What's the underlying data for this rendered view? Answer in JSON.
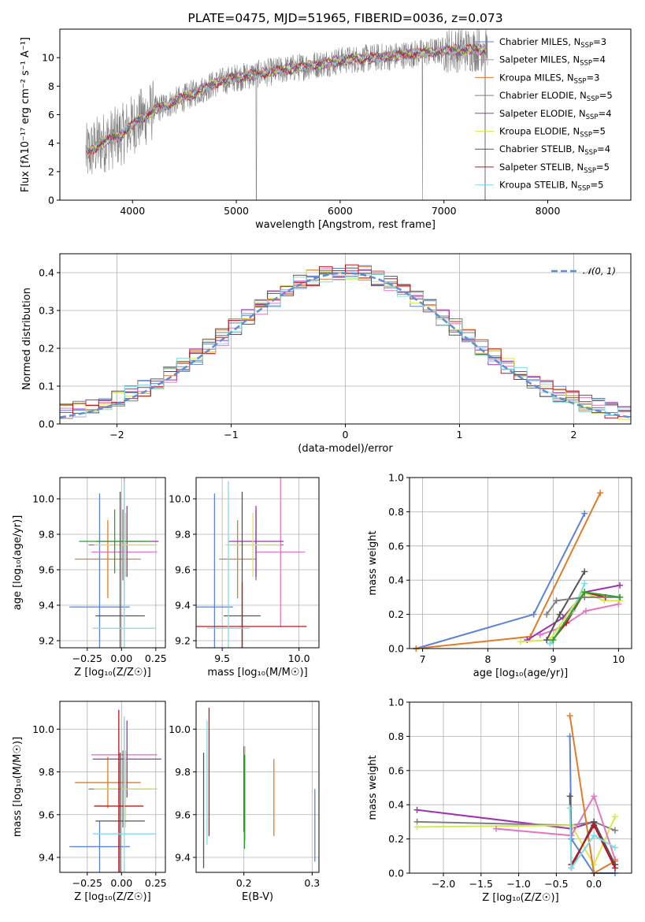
{
  "chart_data": [
    {
      "id": "spectrum",
      "type": "line",
      "title": "PLATE=0475, MJD=51965, FIBERID=0036, z=0.073",
      "xlabel": "wavelength [Angstrom, rest frame]",
      "ylabel": "Flux [fλ10⁻¹⁷ erg cm⁻² s⁻¹ A⁻¹]",
      "xlim": [
        3300,
        8800
      ],
      "ylim": [
        0,
        12
      ],
      "xticks": [
        "4000",
        "5000",
        "6000",
        "7000",
        "8000"
      ],
      "yticks": [
        "0",
        "2",
        "4",
        "6",
        "8",
        "10"
      ],
      "data_color": "#808080",
      "continuum": {
        "x": [
          3550,
          3700,
          3900,
          4000,
          4200,
          4500,
          4800,
          5000,
          5500,
          6000,
          6500,
          7000,
          7400
        ],
        "y": [
          3.2,
          4.0,
          4.6,
          5.3,
          6.3,
          7.2,
          8.2,
          8.6,
          9.2,
          9.8,
          10.1,
          10.5,
          10.6
        ]
      },
      "legend_position": "upper-right",
      "legend": [
        {
          "label": "Chabrier MILES, N",
          "sub": "SSP",
          "suffix": "=3",
          "color": "#5B84D6"
        },
        {
          "label": "Salpeter MILES, N",
          "sub": "SSP",
          "suffix": "=4",
          "color": "#E377C2"
        },
        {
          "label": "Kroupa MILES, N",
          "sub": "SSP",
          "suffix": "=3",
          "color": "#E07B27"
        },
        {
          "label": "Chabrier ELODIE, N",
          "sub": "SSP",
          "suffix": "=5",
          "color": "#7F7F7F"
        },
        {
          "label": "Salpeter ELODIE, N",
          "sub": "SSP",
          "suffix": "=4",
          "color": "#9C33B0"
        },
        {
          "label": "Kroupa ELODIE, N",
          "sub": "SSP",
          "suffix": "=5",
          "color": "#D9E84B"
        },
        {
          "label": "Chabrier STELIB, N",
          "sub": "SSP",
          "suffix": "=4",
          "color": "#555555"
        },
        {
          "label": "Salpeter STELIB, N",
          "sub": "SSP",
          "suffix": "=5",
          "color": "#C0141B"
        },
        {
          "label": "Kroupa STELIB, N",
          "sub": "SSP",
          "suffix": "=5",
          "color": "#80DCE6"
        }
      ]
    },
    {
      "id": "residuals",
      "type": "histogram",
      "xlabel": "(data-model)/error",
      "ylabel": "Normed distribution",
      "xlim": [
        -2.5,
        2.5
      ],
      "ylim": [
        0,
        0.45
      ],
      "xticks": [
        "−2",
        "−1",
        "0",
        "1",
        "2"
      ],
      "yticks": [
        "0.0",
        "0.1",
        "0.2",
        "0.3",
        "0.4"
      ],
      "bins": 44,
      "grid": true,
      "legend": [
        {
          "label": "𝒩(0, 1)",
          "color": "#5B8FD6",
          "style": "dashed"
        }
      ],
      "legend_position": "upper-right"
    },
    {
      "id": "age-vs-Z",
      "type": "errorbar",
      "xlabel": "Z [log₁₀(Z/Z☉)]",
      "ylabel": "age  [log₁₀(age/yr)]",
      "xlim": [
        -0.45,
        0.32
      ],
      "ylim": [
        9.16,
        10.12
      ],
      "xticks": [
        -0.25,
        0.0,
        0.25
      ],
      "xtick_labels": [
        "−0.25",
        "0.00",
        "0.25"
      ],
      "yticks": [
        9.2,
        9.4,
        9.6,
        9.8,
        10.0
      ],
      "ytick_labels": [
        "9.2",
        "9.4",
        "9.6",
        "9.8",
        "10.0"
      ],
      "grid": true,
      "points": [
        {
          "x": -0.16,
          "y": 9.39,
          "xerr": 0.22,
          "yerr": 0.64,
          "color": "#5B84D6"
        },
        {
          "x": 0.02,
          "y": 9.7,
          "xerr": 0.24,
          "yerr": 0.42,
          "color": "#E377C2"
        },
        {
          "x": -0.1,
          "y": 9.66,
          "xerr": 0.24,
          "yerr": 0.22,
          "color": "#E07B27"
        },
        {
          "x": 0.01,
          "y": 9.74,
          "xerr": 0.25,
          "yerr": 0.2,
          "color": "#7F7F7F"
        },
        {
          "x": 0.04,
          "y": 9.76,
          "xerr": 0.23,
          "yerr": 0.2,
          "color": "#9C33B0"
        },
        {
          "x": 0.03,
          "y": 9.74,
          "xerr": 0.23,
          "yerr": 0.18,
          "color": "#D9E84B"
        },
        {
          "x": -0.01,
          "y": 9.34,
          "xerr": 0.18,
          "yerr": 0.7,
          "color": "#555555"
        },
        {
          "x": -0.05,
          "y": 9.76,
          "xerr": 0.26,
          "yerr": 0.18,
          "color": "#2CA02C"
        },
        {
          "x": 0.02,
          "y": 9.27,
          "xerr": 0.23,
          "yerr": 0.83,
          "color": "#80DCE6"
        }
      ]
    },
    {
      "id": "age-vs-mass",
      "type": "errorbar",
      "xlabel": "mass [log₁₀(M/M☉)]",
      "ylabel": "",
      "xlim": [
        9.33,
        10.13
      ],
      "ylim": [
        9.16,
        10.12
      ],
      "xticks": [
        9.5,
        10.0
      ],
      "xtick_labels": [
        "9.5",
        "10.0"
      ],
      "yticks": [
        9.2,
        9.4,
        9.6,
        9.8,
        10.0
      ],
      "ytick_labels": [
        "9.2",
        "9.4",
        "9.6",
        "9.8",
        "10.0"
      ],
      "grid": true,
      "points": [
        {
          "x": 9.45,
          "y": 9.39,
          "xerr": 0.12,
          "yerr": 0.64,
          "color": "#5B84D6"
        },
        {
          "x": 9.88,
          "y": 9.7,
          "xerr": 0.16,
          "yerr": 0.42,
          "color": "#E377C2"
        },
        {
          "x": 9.6,
          "y": 9.66,
          "xerr": 0.12,
          "yerr": 0.22,
          "color": "#E07B27"
        },
        {
          "x": 9.72,
          "y": 9.74,
          "xerr": 0.18,
          "yerr": 0.2,
          "color": "#7F7F7F"
        },
        {
          "x": 9.72,
          "y": 9.76,
          "xerr": 0.18,
          "yerr": 0.2,
          "color": "#9C33B0"
        },
        {
          "x": 9.7,
          "y": 9.74,
          "xerr": 0.18,
          "yerr": 0.18,
          "color": "#D9E84B"
        },
        {
          "x": 9.63,
          "y": 9.34,
          "xerr": 0.12,
          "yerr": 0.7,
          "color": "#555555"
        },
        {
          "x": 9.63,
          "y": 9.28,
          "xerr": 0.42,
          "yerr": 0.25,
          "color": "#C0141B"
        },
        {
          "x": 9.54,
          "y": 9.27,
          "xerr": 0.14,
          "yerr": 0.83,
          "color": "#80DCE6"
        }
      ]
    },
    {
      "id": "mass-weight-vs-age",
      "type": "line",
      "xlabel": "age  [log₁₀(age/yr)]",
      "ylabel": "mass weight",
      "xlim": [
        6.8,
        10.2
      ],
      "ylim": [
        0,
        1
      ],
      "xticks": [
        7,
        8,
        9,
        10
      ],
      "xtick_labels": [
        "7",
        "8",
        "9",
        "10"
      ],
      "yticks": [
        0,
        0.2,
        0.4,
        0.6,
        0.8,
        1.0
      ],
      "ytick_labels": [
        "0.0",
        "0.2",
        "0.4",
        "0.6",
        "0.8",
        "1.0"
      ],
      "grid": true,
      "series": [
        {
          "color": "#5B84D6",
          "x": [
            6.9,
            8.7,
            9.48
          ],
          "y": [
            0.0,
            0.2,
            0.79
          ]
        },
        {
          "color": "#E07B27",
          "x": [
            6.9,
            8.65,
            9.72
          ],
          "y": [
            0.0,
            0.07,
            0.91
          ]
        },
        {
          "color": "#E377C2",
          "x": [
            8.8,
            9.1,
            9.5,
            10.0
          ],
          "y": [
            0.08,
            0.12,
            0.22,
            0.26
          ]
        },
        {
          "color": "#9C33B0",
          "x": [
            8.6,
            9.15,
            9.48,
            10.02
          ],
          "y": [
            0.05,
            0.18,
            0.33,
            0.37
          ]
        },
        {
          "color": "#D9E84B",
          "x": [
            8.5,
            8.95,
            9.45,
            9.78,
            10.02
          ],
          "y": [
            0.04,
            0.05,
            0.33,
            0.28,
            0.28
          ]
        },
        {
          "color": "#555555",
          "x": [
            8.9,
            9.1,
            9.48
          ],
          "y": [
            0.05,
            0.2,
            0.45
          ]
        },
        {
          "color": "#C0141B",
          "x": [
            8.95,
            9.2,
            9.48,
            9.8
          ],
          "y": [
            0.03,
            0.15,
            0.33,
            0.3
          ]
        },
        {
          "color": "#80DCE6",
          "x": [
            8.95,
            9.3,
            9.48
          ],
          "y": [
            0.03,
            0.22,
            0.38
          ]
        },
        {
          "color": "#7F7F7F",
          "x": [
            8.9,
            9.05,
            9.48,
            10.02
          ],
          "y": [
            0.2,
            0.28,
            0.3,
            0.3
          ]
        },
        {
          "color": "#2CA02C",
          "x": [
            9.0,
            9.48,
            10.02
          ],
          "y": [
            0.05,
            0.33,
            0.3
          ]
        }
      ]
    },
    {
      "id": "mass-vs-Z",
      "type": "errorbar",
      "xlabel": "Z [log₁₀(Z/Z☉)]",
      "ylabel": "mass [log₁₀(M/M☉)]",
      "xlim": [
        -0.45,
        0.32
      ],
      "ylim": [
        9.33,
        10.13
      ],
      "xticks": [
        -0.25,
        0.0,
        0.25
      ],
      "xtick_labels": [
        "−0.25",
        "0.00",
        "0.25"
      ],
      "yticks": [
        9.4,
        9.6,
        9.8,
        10.0
      ],
      "ytick_labels": [
        "9.4",
        "9.6",
        "9.8",
        "10.0"
      ],
      "grid": true,
      "points": [
        {
          "x": -0.16,
          "y": 9.45,
          "xerr": 0.22,
          "yerr": 0.12,
          "color": "#5B84D6"
        },
        {
          "x": 0.02,
          "y": 9.88,
          "xerr": 0.24,
          "yerr": 0.16,
          "color": "#E377C2"
        },
        {
          "x": -0.1,
          "y": 9.75,
          "xerr": 0.24,
          "yerr": 0.12,
          "color": "#E07B27"
        },
        {
          "x": 0.01,
          "y": 9.72,
          "xerr": 0.25,
          "yerr": 0.18,
          "color": "#7F7F7F"
        },
        {
          "x": 0.04,
          "y": 9.86,
          "xerr": 0.25,
          "yerr": 0.18,
          "color": "#9C33B0"
        },
        {
          "x": 0.03,
          "y": 9.72,
          "xerr": 0.23,
          "yerr": 0.18,
          "color": "#D9E84B"
        },
        {
          "x": -0.01,
          "y": 9.57,
          "xerr": 0.18,
          "yerr": 0.32,
          "color": "#555555"
        },
        {
          "x": -0.02,
          "y": 9.64,
          "xerr": 0.18,
          "yerr": 0.45,
          "color": "#C0141B"
        },
        {
          "x": 0.02,
          "y": 9.51,
          "xerr": 0.23,
          "yerr": 0.55,
          "color": "#80DCE6"
        }
      ]
    },
    {
      "id": "mass-vs-ebv",
      "type": "errorbar",
      "xlabel": "E(B-V)",
      "ylabel": "",
      "xlim": [
        0.13,
        0.31
      ],
      "ylim": [
        9.33,
        10.13
      ],
      "xticks": [
        0.2,
        0.3
      ],
      "xtick_labels": [
        "0.2",
        "0.3"
      ],
      "yticks": [
        9.4,
        9.6,
        9.8,
        10.0
      ],
      "ytick_labels": [
        "9.4",
        "9.6",
        "9.8",
        "10.0"
      ],
      "grid": true,
      "points": [
        {
          "x": 0.304,
          "y": 9.55,
          "xerr": 0,
          "yerr": 0.17,
          "color": "#5B84D6"
        },
        {
          "x": 0.244,
          "y": 9.68,
          "xerr": 0,
          "yerr": 0.18,
          "color": "#E07B27"
        },
        {
          "x": 0.141,
          "y": 9.62,
          "xerr": 0,
          "yerr": 0.27,
          "color": "#555555"
        },
        {
          "x": 0.146,
          "y": 9.75,
          "xerr": 0,
          "yerr": 0.29,
          "color": "#80DCE6"
        },
        {
          "x": 0.149,
          "y": 9.8,
          "xerr": 0,
          "yerr": 0.3,
          "color": "#C0141B"
        },
        {
          "x": 0.2,
          "y": 9.72,
          "xerr": 0,
          "yerr": 0.2,
          "color": "#9C33B0"
        },
        {
          "x": 0.202,
          "y": 9.7,
          "xerr": 0,
          "yerr": 0.22,
          "color": "#D9E84B"
        },
        {
          "x": 0.201,
          "y": 9.66,
          "xerr": 0,
          "yerr": 0.22,
          "color": "#2CA02C"
        }
      ]
    },
    {
      "id": "mass-weight-vs-Z",
      "type": "line",
      "xlabel": "Z [log₁₀(Z/Z☉)]",
      "ylabel": "mass weight",
      "xlim": [
        -2.45,
        0.5
      ],
      "ylim": [
        0,
        1
      ],
      "xticks": [
        -2.0,
        -1.5,
        -1.0,
        -0.5,
        0.0
      ],
      "xtick_labels": [
        "−2.0",
        "−1.5",
        "−1.0",
        "−0.5",
        "0.0"
      ],
      "yticks": [
        0,
        0.2,
        0.4,
        0.6,
        0.8,
        1.0
      ],
      "ytick_labels": [
        "0.0",
        "0.2",
        "0.4",
        "0.6",
        "0.8",
        "1.0"
      ],
      "grid": true,
      "series": [
        {
          "color": "#9C33B0",
          "x": [
            -2.35,
            -0.3,
            0.0,
            0.28
          ],
          "y": [
            0.37,
            0.26,
            0.3,
            0.05
          ]
        },
        {
          "color": "#7F7F7F",
          "x": [
            -2.35,
            -0.3,
            0.0,
            0.28
          ],
          "y": [
            0.3,
            0.28,
            0.3,
            0.25
          ]
        },
        {
          "color": "#D9E84B",
          "x": [
            -2.35,
            -0.3,
            0.0,
            0.28
          ],
          "y": [
            0.27,
            0.28,
            0.05,
            0.33
          ]
        },
        {
          "color": "#E377C2",
          "x": [
            -1.3,
            -0.3,
            0.0,
            0.28
          ],
          "y": [
            0.26,
            0.22,
            0.45,
            0.08
          ]
        },
        {
          "color": "#5B84D6",
          "x": [
            -0.32,
            -0.3,
            0.0,
            0.28
          ],
          "y": [
            0.8,
            0.2,
            0.0,
            0.0
          ]
        },
        {
          "color": "#E07B27",
          "x": [
            -0.32,
            0.0,
            0.28
          ],
          "y": [
            0.92,
            0.0,
            0.07
          ]
        },
        {
          "color": "#555555",
          "x": [
            -0.32,
            -0.3,
            0.0,
            0.28
          ],
          "y": [
            0.45,
            0.03,
            0.3,
            0.05
          ]
        },
        {
          "color": "#C0141B",
          "x": [
            -0.3,
            0.0,
            0.28
          ],
          "y": [
            0.05,
            0.28,
            0.03
          ]
        },
        {
          "color": "#80DCE6",
          "x": [
            -0.32,
            -0.3,
            0.0,
            0.28
          ],
          "y": [
            0.38,
            0.03,
            0.22,
            0.15
          ]
        }
      ]
    }
  ]
}
